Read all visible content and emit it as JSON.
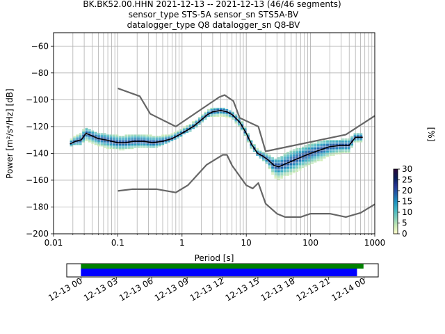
{
  "header": {
    "line1": "BK.BK52.00.HHN   2021-12-13 -- 2021-12-13  (46/46 segments)",
    "line2": "sensor_type STS-5A sensor_sn STS5A-BV",
    "line3": "datalogger_type Q8 datalogger_sn Q8-BV"
  },
  "chart_data": [
    {
      "type": "heatmap",
      "xlabel": "Period [s]",
      "ylabel": "Power [m²/s⁴/Hz] [dB]",
      "xscale": "log",
      "xlim": [
        0.01,
        1000
      ],
      "ylim": [
        -200,
        -50
      ],
      "grid": true,
      "x_ticks": [
        {
          "v": 0.01,
          "label": "0.01"
        },
        {
          "v": 0.1,
          "label": "0.1"
        },
        {
          "v": 1,
          "label": "1"
        },
        {
          "v": 10,
          "label": "10"
        },
        {
          "v": 100,
          "label": "100"
        },
        {
          "v": 1000,
          "label": "1000"
        }
      ],
      "y_ticks": [
        -60,
        -80,
        -100,
        -120,
        -140,
        -160,
        -180,
        -200
      ],
      "colorbar": {
        "label": "[%]",
        "ticks": [
          0,
          5,
          10,
          15,
          20,
          25,
          30
        ],
        "range": [
          0,
          30
        ],
        "colors": [
          "#ffffcc",
          "#c7e9b4",
          "#7fcdbb",
          "#41b6c4",
          "#1d91c0",
          "#225ea8",
          "#253494",
          "#081d58",
          "#2b0a3d"
        ]
      },
      "series": [
        {
          "name": "",
          "role": "mode",
          "color": "#000000",
          "points": [
            [
              0.018,
              -133
            ],
            [
              0.022,
              -131
            ],
            [
              0.027,
              -130
            ],
            [
              0.032,
              -125
            ],
            [
              0.04,
              -127
            ],
            [
              0.05,
              -129
            ],
            [
              0.065,
              -130
            ],
            [
              0.08,
              -131
            ],
            [
              0.1,
              -132
            ],
            [
              0.13,
              -132
            ],
            [
              0.18,
              -131
            ],
            [
              0.25,
              -131
            ],
            [
              0.35,
              -132
            ],
            [
              0.5,
              -131
            ],
            [
              0.7,
              -129
            ],
            [
              1,
              -125
            ],
            [
              1.5,
              -120
            ],
            [
              2,
              -115
            ],
            [
              2.5,
              -111
            ],
            [
              3,
              -109
            ],
            [
              4,
              -108
            ],
            [
              5,
              -109
            ],
            [
              6,
              -111
            ],
            [
              8,
              -117
            ],
            [
              10,
              -125
            ],
            [
              12,
              -133
            ],
            [
              15,
              -140
            ],
            [
              18,
              -142
            ],
            [
              22,
              -145
            ],
            [
              27,
              -149
            ],
            [
              32,
              -150
            ],
            [
              40,
              -148
            ],
            [
              50,
              -146
            ],
            [
              70,
              -143
            ],
            [
              100,
              -140
            ],
            [
              150,
              -137
            ],
            [
              200,
              -135
            ],
            [
              300,
              -134
            ],
            [
              400,
              -134
            ],
            [
              500,
              -128
            ],
            [
              650,
              -128
            ]
          ]
        },
        {
          "name": "",
          "role": "noise-model-high",
          "color": "#666666",
          "points": [
            [
              0.1,
              -91.5
            ],
            [
              0.22,
              -97.4
            ],
            [
              0.32,
              -110.5
            ],
            [
              0.8,
              -120
            ],
            [
              3.8,
              -98
            ],
            [
              4.6,
              -96.5
            ],
            [
              6.3,
              -101
            ],
            [
              7.9,
              -113.5
            ],
            [
              15.4,
              -120
            ],
            [
              20,
              -138.5
            ],
            [
              354.8,
              -126
            ],
            [
              1000,
              -112
            ]
          ]
        },
        {
          "name": "",
          "role": "noise-model-low",
          "color": "#666666",
          "points": [
            [
              0.1,
              -168
            ],
            [
              0.17,
              -166.7
            ],
            [
              0.4,
              -166.7
            ],
            [
              0.8,
              -169.2
            ],
            [
              1.24,
              -163.7
            ],
            [
              2.4,
              -148.6
            ],
            [
              4.3,
              -141.1
            ],
            [
              5,
              -141.1
            ],
            [
              6,
              -149
            ],
            [
              10,
              -163.8
            ],
            [
              12.6,
              -166.2
            ],
            [
              15.4,
              -162.1
            ],
            [
              20,
              -177.5
            ],
            [
              30,
              -185
            ],
            [
              40,
              -187.5
            ],
            [
              70,
              -187.5
            ],
            [
              100,
              -185
            ],
            [
              200,
              -185
            ],
            [
              354.8,
              -187.5
            ],
            [
              600,
              -184.4
            ],
            [
              1000,
              -178
            ]
          ]
        }
      ],
      "histogram_columns": [
        {
          "x": 0.018,
          "lo": -136,
          "hi": -131,
          "mode": -133
        },
        {
          "x": 0.022,
          "lo": -134,
          "hi": -127,
          "mode": -131
        },
        {
          "x": 0.027,
          "lo": -135,
          "hi": -125,
          "mode": -130
        },
        {
          "x": 0.032,
          "lo": -131,
          "hi": -121,
          "mode": -125
        },
        {
          "x": 0.04,
          "lo": -133,
          "hi": -123,
          "mode": -127
        },
        {
          "x": 0.05,
          "lo": -135,
          "hi": -125,
          "mode": -129
        },
        {
          "x": 0.065,
          "lo": -137,
          "hi": -126,
          "mode": -130
        },
        {
          "x": 0.08,
          "lo": -137,
          "hi": -126,
          "mode": -131
        },
        {
          "x": 0.1,
          "lo": -138,
          "hi": -127,
          "mode": -132
        },
        {
          "x": 0.13,
          "lo": -138,
          "hi": -127,
          "mode": -132
        },
        {
          "x": 0.18,
          "lo": -137,
          "hi": -126,
          "mode": -131
        },
        {
          "x": 0.25,
          "lo": -136,
          "hi": -126,
          "mode": -131
        },
        {
          "x": 0.35,
          "lo": -137,
          "hi": -127,
          "mode": -132
        },
        {
          "x": 0.5,
          "lo": -135,
          "hi": -127,
          "mode": -131
        },
        {
          "x": 0.7,
          "lo": -132,
          "hi": -126,
          "mode": -129
        },
        {
          "x": 1,
          "lo": -128,
          "hi": -122,
          "mode": -125
        },
        {
          "x": 1.5,
          "lo": -123,
          "hi": -117,
          "mode": -120
        },
        {
          "x": 2,
          "lo": -118,
          "hi": -112,
          "mode": -115
        },
        {
          "x": 2.5,
          "lo": -114,
          "hi": -108,
          "mode": -111
        },
        {
          "x": 3,
          "lo": -113,
          "hi": -106,
          "mode": -109
        },
        {
          "x": 4,
          "lo": -113,
          "hi": -106,
          "mode": -108
        },
        {
          "x": 5,
          "lo": -114,
          "hi": -107,
          "mode": -109
        },
        {
          "x": 6,
          "lo": -115,
          "hi": -109,
          "mode": -111
        },
        {
          "x": 8,
          "lo": -121,
          "hi": -114,
          "mode": -117
        },
        {
          "x": 10,
          "lo": -129,
          "hi": -122,
          "mode": -125
        },
        {
          "x": 12,
          "lo": -137,
          "hi": -130,
          "mode": -133
        },
        {
          "x": 15,
          "lo": -143,
          "hi": -137,
          "mode": -140
        },
        {
          "x": 18,
          "lo": -146,
          "hi": -139,
          "mode": -142
        },
        {
          "x": 22,
          "lo": -150,
          "hi": -141,
          "mode": -145
        },
        {
          "x": 27,
          "lo": -158,
          "hi": -144,
          "mode": -149
        },
        {
          "x": 32,
          "lo": -161,
          "hi": -144,
          "mode": -150
        },
        {
          "x": 40,
          "lo": -158,
          "hi": -141,
          "mode": -148
        },
        {
          "x": 50,
          "lo": -156,
          "hi": -138,
          "mode": -146
        },
        {
          "x": 70,
          "lo": -153,
          "hi": -136,
          "mode": -143
        },
        {
          "x": 100,
          "lo": -149,
          "hi": -133,
          "mode": -140
        },
        {
          "x": 150,
          "lo": -146,
          "hi": -131,
          "mode": -137
        },
        {
          "x": 200,
          "lo": -143,
          "hi": -130,
          "mode": -135
        },
        {
          "x": 300,
          "lo": -141,
          "hi": -130,
          "mode": -134
        },
        {
          "x": 400,
          "lo": -140,
          "hi": -129,
          "mode": -134
        },
        {
          "x": 500,
          "lo": -132,
          "hi": -125,
          "mode": -128
        },
        {
          "x": 650,
          "lo": -132,
          "hi": -125,
          "mode": -128
        }
      ]
    },
    {
      "type": "timeline",
      "x_ticks": [
        "12-13 00",
        "12-13 03",
        "12-13 06",
        "12-13 09",
        "12-13 12",
        "12-13 15",
        "12-13 18",
        "12-13 21",
        "12-14 00"
      ],
      "xlim_hours": [
        -1.2,
        25.2
      ],
      "bars": [
        {
          "color": "#008000",
          "start_hour": 0,
          "end_hour": 23.95
        },
        {
          "color": "#0000ff",
          "start_hour": 0,
          "end_hour": 23.4
        }
      ]
    }
  ]
}
